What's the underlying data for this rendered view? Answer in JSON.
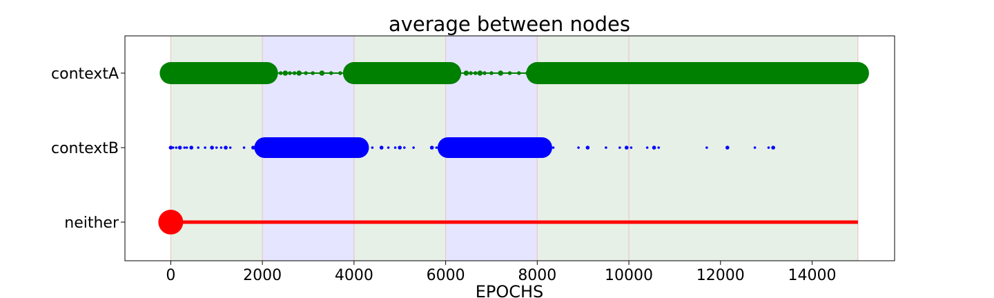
{
  "chart_data": {
    "type": "scatter",
    "title": "average between nodes",
    "xlabel": "EPOCHS",
    "ylabel": "",
    "xlim": [
      -1000,
      15800
    ],
    "xticks": [
      0,
      2000,
      4000,
      6000,
      8000,
      10000,
      12000,
      14000
    ],
    "categories": [
      "contextA",
      "contextB",
      "neither"
    ],
    "grid": false,
    "shaded_regions": [
      {
        "x0": 0,
        "x1": 2000,
        "color": "#e6f0e6",
        "context": "contextA"
      },
      {
        "x0": 2000,
        "x1": 4000,
        "color": "#e5e5ff",
        "context": "contextB"
      },
      {
        "x0": 4000,
        "x1": 6000,
        "color": "#e6f0e6",
        "context": "contextA"
      },
      {
        "x0": 6000,
        "x1": 8000,
        "color": "#e5e5ff",
        "context": "contextB"
      },
      {
        "x0": 8000,
        "x1": 15000,
        "color": "#e6f0e6",
        "context": "contextA"
      }
    ],
    "series": [
      {
        "category": "contextA",
        "color": "#008000",
        "large_segments": [
          [
            0,
            2100
          ],
          [
            4000,
            6100
          ],
          [
            8000,
            15000
          ]
        ],
        "small_points": [
          2200,
          2300,
          2400,
          2500,
          2600,
          2700,
          2800,
          2950,
          3100,
          3300,
          3500,
          3700,
          3850,
          6200,
          6300,
          6450,
          6550,
          6650,
          6750,
          6850,
          7000,
          7200,
          7400,
          7600,
          7800
        ]
      },
      {
        "category": "contextB",
        "color": "#0000ff",
        "large_segments": [
          [
            2050,
            4100
          ],
          [
            6050,
            8100
          ]
        ],
        "small_points": [
          0,
          50,
          120,
          200,
          300,
          350,
          450,
          600,
          750,
          900,
          1000,
          1100,
          1200,
          1300,
          1600,
          1800,
          4200,
          4400,
          4600,
          4750,
          4900,
          5000,
          5100,
          5300,
          5700,
          5800,
          5900,
          8200,
          8350,
          8900,
          9100,
          9500,
          9800,
          9950,
          10050,
          10400,
          10550,
          10650,
          11700,
          12150,
          12750,
          13050,
          13150
        ]
      },
      {
        "category": "neither",
        "color": "#ff0000",
        "large_points": [
          0
        ],
        "line_segment": [
          0,
          15000
        ]
      }
    ]
  }
}
